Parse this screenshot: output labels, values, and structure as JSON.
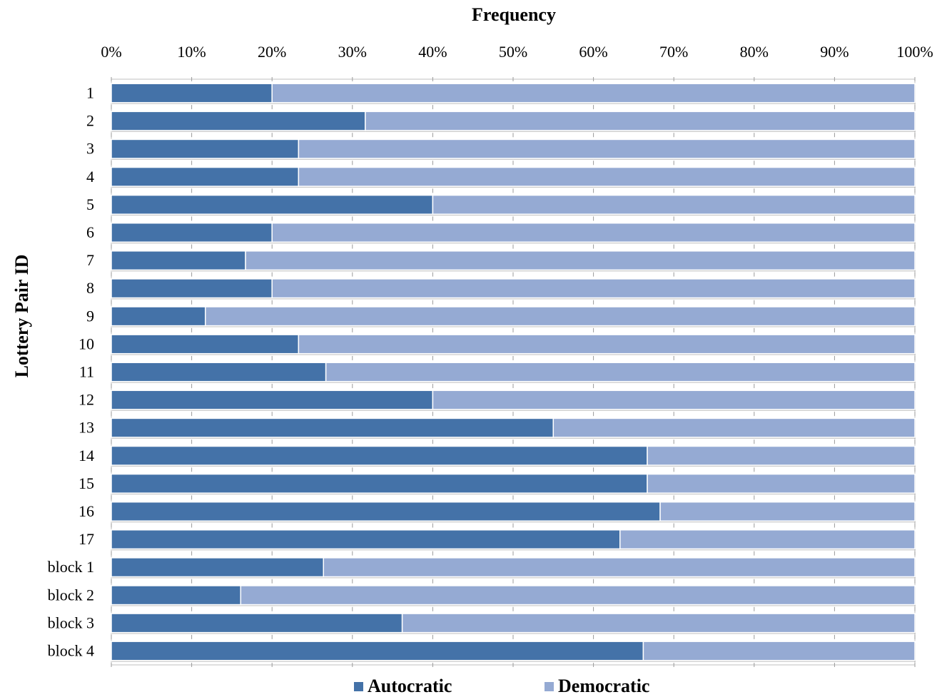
{
  "chart_data": {
    "type": "bar",
    "stacked": true,
    "orientation": "horizontal",
    "percent": true,
    "title": "",
    "xlabel": "Frequency",
    "ylabel": "Lottery Pair ID",
    "xlim": [
      0,
      100
    ],
    "x_ticks": [
      "0%",
      "10%",
      "20%",
      "30%",
      "40%",
      "50%",
      "60%",
      "70%",
      "80%",
      "90%",
      "100%"
    ],
    "x_axis_position": "top",
    "grid": true,
    "legend_position": "bottom",
    "categories": [
      "1",
      "2",
      "3",
      "4",
      "5",
      "6",
      "7",
      "8",
      "9",
      "10",
      "11",
      "12",
      "13",
      "14",
      "15",
      "16",
      "17",
      "block 1",
      "block 2",
      "block 3",
      "block 4"
    ],
    "series": [
      {
        "name": "Autocratic",
        "color": "#4472a8",
        "values": [
          20,
          31.6,
          23.3,
          23.3,
          40,
          20,
          16.7,
          20,
          11.7,
          23.3,
          26.7,
          40,
          55,
          66.7,
          66.7,
          68.3,
          63.3,
          26.4,
          16.1,
          36.2,
          66.2
        ]
      },
      {
        "name": "Democratic",
        "color": "#95aad3",
        "values": [
          80,
          68.4,
          76.7,
          76.7,
          60,
          80,
          83.3,
          80,
          88.3,
          76.7,
          73.3,
          60,
          45,
          33.3,
          33.3,
          31.7,
          36.7,
          73.6,
          83.9,
          63.8,
          33.8
        ]
      }
    ]
  }
}
